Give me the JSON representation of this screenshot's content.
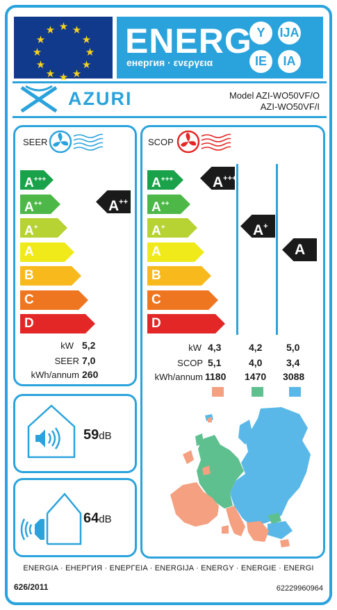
{
  "header": {
    "energy_word": "ENERG",
    "energy_sub": "енергия · ενεργεια",
    "lang_codes": [
      "Y",
      "IJA",
      "IE",
      "IA"
    ]
  },
  "brand": {
    "name": "AZURI",
    "model_line_1": "Model AZI-WO50VF/O",
    "model_line_2": "AZI-WO50VF/I"
  },
  "seer": {
    "title": "SEER",
    "scale": [
      {
        "letter": "A",
        "sup": "+++",
        "color": "#1aa24a"
      },
      {
        "letter": "A",
        "sup": "++",
        "color": "#4db848"
      },
      {
        "letter": "A",
        "sup": "+",
        "color": "#b6d233"
      },
      {
        "letter": "A",
        "sup": "",
        "color": "#f0ea1a"
      },
      {
        "letter": "B",
        "sup": "",
        "color": "#f8b91d"
      },
      {
        "letter": "C",
        "sup": "",
        "color": "#ef7621"
      },
      {
        "letter": "D",
        "sup": "",
        "color": "#e32726"
      }
    ],
    "result": {
      "letter": "A",
      "sup": "++"
    },
    "rows": [
      {
        "label": "kW",
        "value": "5,2"
      },
      {
        "label": "SEER",
        "value": "7,0"
      },
      {
        "label": "kWh/annum",
        "value": "260"
      }
    ]
  },
  "scop": {
    "title": "SCOP",
    "scale": [
      {
        "letter": "A",
        "sup": "+++",
        "color": "#1aa24a"
      },
      {
        "letter": "A",
        "sup": "++",
        "color": "#4db848"
      },
      {
        "letter": "A",
        "sup": "+",
        "color": "#b6d233"
      },
      {
        "letter": "A",
        "sup": "",
        "color": "#f0ea1a"
      },
      {
        "letter": "B",
        "sup": "",
        "color": "#f8b91d"
      },
      {
        "letter": "C",
        "sup": "",
        "color": "#ef7621"
      },
      {
        "letter": "D",
        "sup": "",
        "color": "#e32726"
      }
    ],
    "results": [
      {
        "letter": "A",
        "sup": "+++"
      },
      {
        "letter": "A",
        "sup": "+"
      },
      {
        "letter": "A",
        "sup": ""
      }
    ],
    "row_labels": [
      "kW",
      "SCOP",
      "kWh/annum"
    ],
    "columns": [
      {
        "values": [
          "4,3",
          "5,1",
          "1180"
        ],
        "color": "#f4a081"
      },
      {
        "values": [
          "4,2",
          "4,0",
          "1470"
        ],
        "color": "#5ec08f"
      },
      {
        "values": [
          "5,0",
          "3,4",
          "3088"
        ],
        "color": "#5ab8e8"
      }
    ]
  },
  "noise": {
    "indoor": {
      "value": "59",
      "unit": "dB"
    },
    "outdoor": {
      "value": "64",
      "unit": "dB"
    }
  },
  "footer": {
    "languages": "ENERGIA · ЕНЕРГИЯ · ΕΝΕΡΓΕΙΑ · ENERGIJA · ENERGY · ENERGIE · ENERGI",
    "regulation": "626/2011",
    "serial": "62229960964"
  },
  "colors": {
    "accent": "#2aa3dc",
    "eu_blue": "#123a8c",
    "eu_star": "#f7d21a",
    "fan_cool": "#2aa3dc",
    "fan_heat": "#e32726"
  }
}
